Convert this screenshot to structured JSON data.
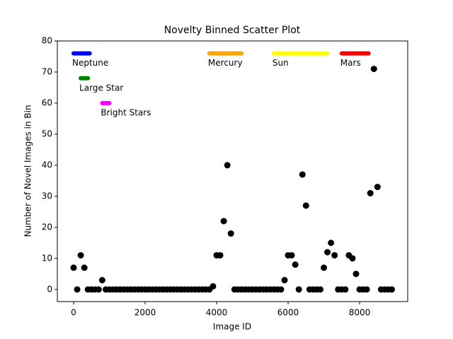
{
  "chart_data": {
    "type": "scatter",
    "title": "Novelty Binned Scatter Plot",
    "x_label": "Image ID",
    "y_label": "Number of Novel Images in Bin",
    "color": "#000000",
    "x": [
      0,
      100,
      200,
      300,
      400,
      500,
      600,
      700,
      800,
      900,
      1000,
      1100,
      1200,
      1300,
      1400,
      1500,
      1600,
      1700,
      1800,
      1900,
      2000,
      2100,
      2200,
      2300,
      2400,
      2500,
      2600,
      2700,
      2800,
      2900,
      3000,
      3100,
      3200,
      3300,
      3400,
      3500,
      3600,
      3700,
      3800,
      3900,
      4000,
      4100,
      4200,
      4300,
      4400,
      4500,
      4600,
      4700,
      4800,
      4900,
      5000,
      5100,
      5200,
      5300,
      5400,
      5500,
      5600,
      5700,
      5800,
      5900,
      6000,
      6100,
      6200,
      6300,
      6400,
      6500,
      6600,
      6700,
      6800,
      6900,
      7000,
      7100,
      7200,
      7300,
      7400,
      7500,
      7600,
      7700,
      7800,
      7900,
      8000,
      8100,
      8200,
      8300,
      8400,
      8500,
      8600,
      8700,
      8800,
      8900
    ],
    "values": [
      7,
      0,
      11,
      7,
      0,
      0,
      0,
      0,
      3,
      0,
      0,
      0,
      0,
      0,
      0,
      0,
      0,
      0,
      0,
      0,
      0,
      0,
      0,
      0,
      0,
      0,
      0,
      0,
      0,
      0,
      0,
      0,
      0,
      0,
      0,
      0,
      0,
      0,
      0,
      1,
      11,
      11,
      22,
      40,
      18,
      0,
      0,
      0,
      0,
      0,
      0,
      0,
      0,
      0,
      0,
      0,
      0,
      0,
      0,
      3,
      11,
      11,
      8,
      0,
      37,
      27,
      0,
      0,
      0,
      0,
      7,
      12,
      15,
      11,
      0,
      0,
      0,
      11,
      10,
      5,
      0,
      0,
      0,
      31,
      71,
      33,
      0,
      0,
      0,
      0
    ],
    "regions": [
      {
        "name": "Neptune",
        "color": "#0000ff",
        "x": [
          0,
          450
        ],
        "y": 76
      },
      {
        "name": "Large Star",
        "color": "#008000",
        "x": [
          200,
          400
        ],
        "y": 68
      },
      {
        "name": "Bright Stars",
        "color": "#ff00ff",
        "x": [
          800,
          1000
        ],
        "y": 60
      },
      {
        "name": "Mercury",
        "color": "#ffa500",
        "x": [
          3800,
          4700
        ],
        "y": 76
      },
      {
        "name": "Sun",
        "color": "#ffff00",
        "x": [
          5600,
          7100
        ],
        "y": 76
      },
      {
        "name": "Mars",
        "color": "#ff0000",
        "x": [
          7500,
          8250
        ],
        "y": 76
      }
    ],
    "xlim": [
      -455,
      9345
    ],
    "ylim": [
      -3.9,
      80
    ],
    "xticks": [
      0,
      2000,
      4000,
      6000,
      8000
    ],
    "yticks": [
      0,
      10,
      20,
      30,
      40,
      50,
      60,
      70,
      80
    ]
  }
}
